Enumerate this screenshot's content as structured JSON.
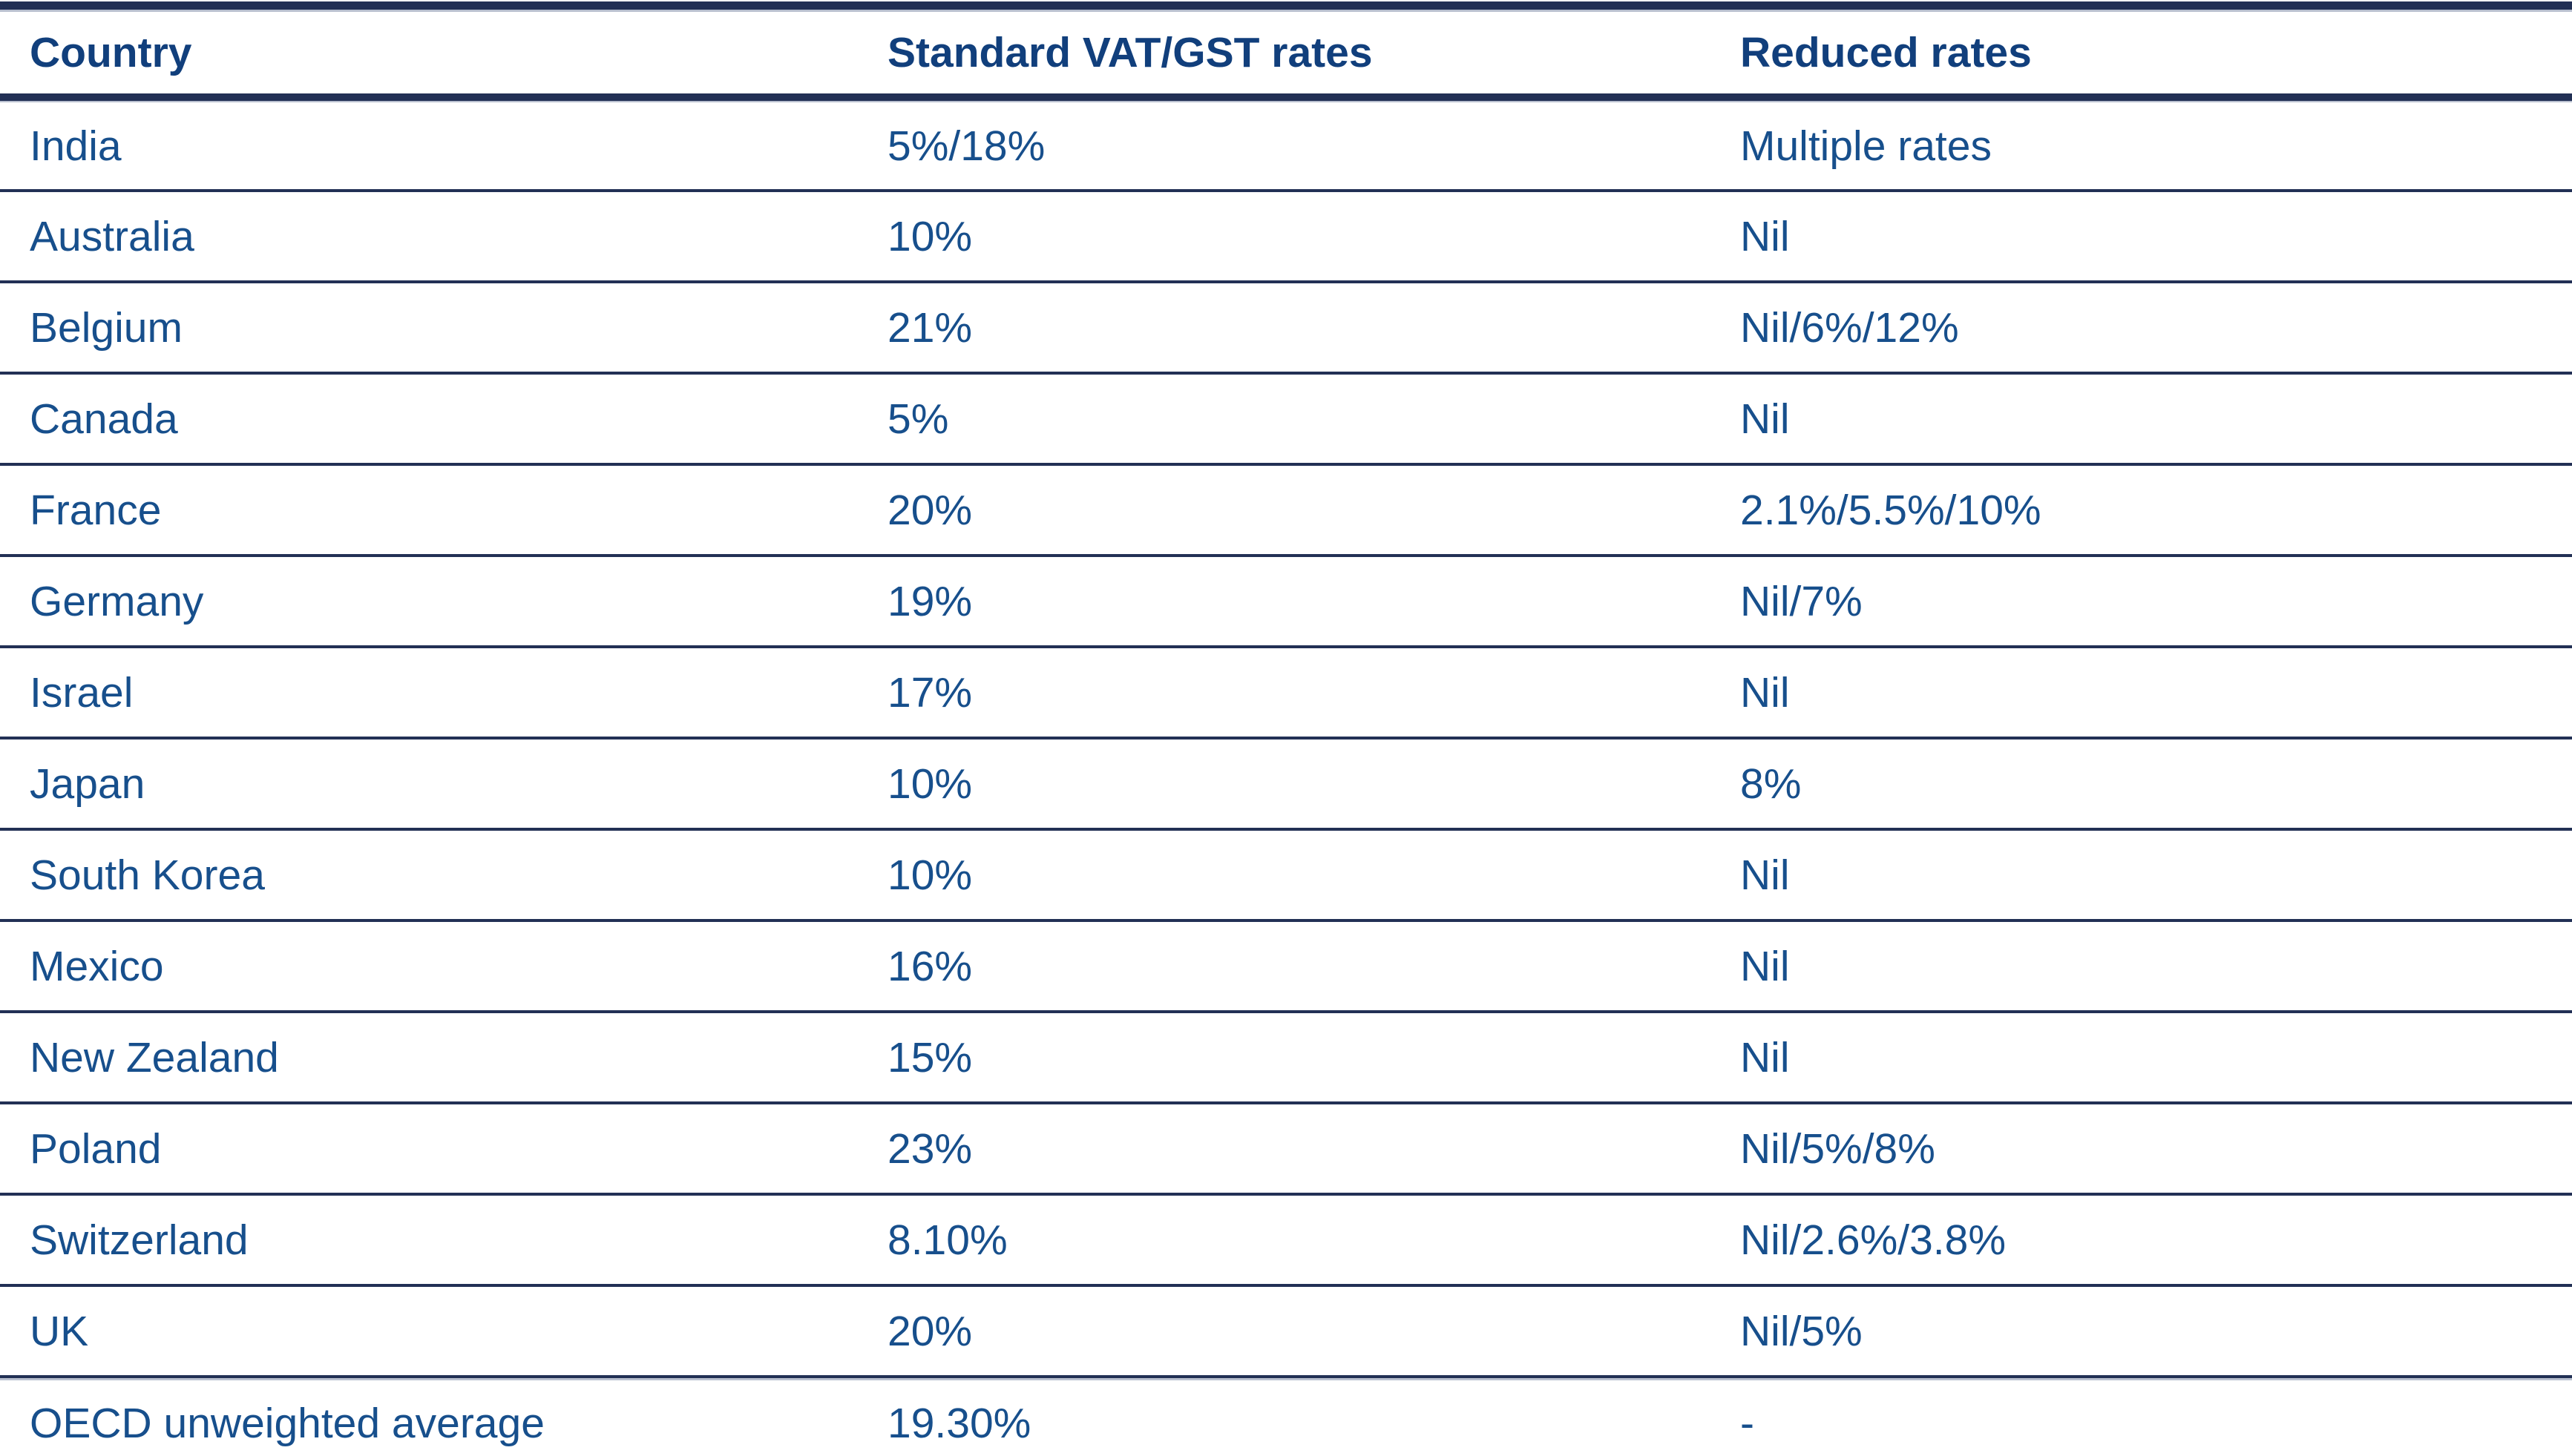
{
  "table": {
    "columns": [
      {
        "label": "Country"
      },
      {
        "label": "Standard VAT/GST rates"
      },
      {
        "label": "Reduced rates"
      }
    ],
    "rows": [
      {
        "country": "India",
        "standard_rate": "5%/18%",
        "reduced_rate": "Multiple rates"
      },
      {
        "country": "Australia",
        "standard_rate": "10%",
        "reduced_rate": "Nil"
      },
      {
        "country": "Belgium",
        "standard_rate": "21%",
        "reduced_rate": "Nil/6%/12%"
      },
      {
        "country": "Canada",
        "standard_rate": "5%",
        "reduced_rate": "Nil"
      },
      {
        "country": "France",
        "standard_rate": "20%",
        "reduced_rate": "2.1%/5.5%/10%"
      },
      {
        "country": "Germany",
        "standard_rate": "19%",
        "reduced_rate": "Nil/7%"
      },
      {
        "country": "Israel",
        "standard_rate": "17%",
        "reduced_rate": "Nil"
      },
      {
        "country": "Japan",
        "standard_rate": "10%",
        "reduced_rate": "8%"
      },
      {
        "country": "South Korea",
        "standard_rate": "10%",
        "reduced_rate": "Nil"
      },
      {
        "country": "Mexico",
        "standard_rate": "16%",
        "reduced_rate": "Nil"
      },
      {
        "country": "New Zealand",
        "standard_rate": "15%",
        "reduced_rate": "Nil"
      },
      {
        "country": "Poland",
        "standard_rate": "23%",
        "reduced_rate": "Nil/5%/8%"
      },
      {
        "country": "Switzerland",
        "standard_rate": "8.10%",
        "reduced_rate": "Nil/2.6%/3.8%"
      },
      {
        "country": "UK",
        "standard_rate": "20%",
        "reduced_rate": "Nil/5%"
      },
      {
        "country": "OECD unweighted average",
        "standard_rate": "19.30%",
        "reduced_rate": "-"
      }
    ]
  },
  "colors": {
    "rule_dark": "#223055",
    "rule_light": "#b9c0cf",
    "body_text": "#174f8c",
    "header_text": "#113f7c",
    "background": "#ffffff"
  }
}
